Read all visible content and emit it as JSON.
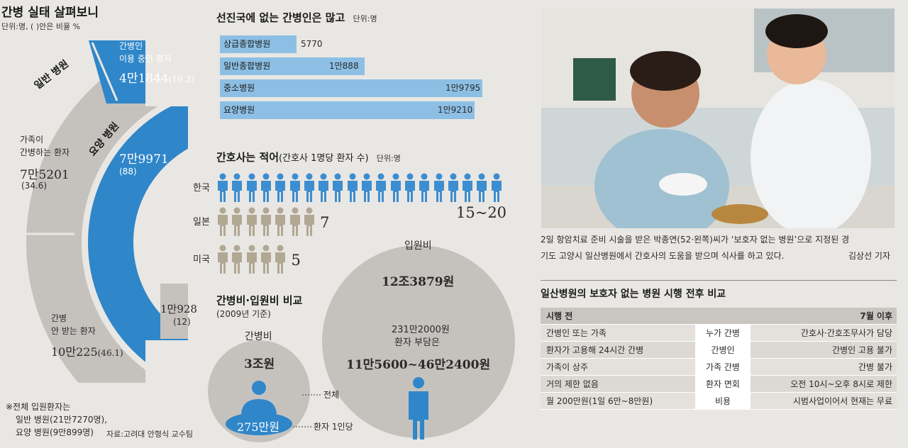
{
  "donut": {
    "title": "간병 실태 살펴보니",
    "unit": "단위:명, ( )안은 비율 %",
    "general_label": "일반 병원",
    "nursing_label": "요양 병원",
    "seg1": {
      "line1": "간병인",
      "line2": "이용 중인 환자",
      "value": "4만1844",
      "pct": "(19.3)"
    },
    "seg2": {
      "line1": "가족이",
      "line2": "간병하는 환자",
      "value": "7만5201",
      "pct": "(34.6)"
    },
    "seg3": {
      "line1": "간병",
      "line2": "안 받는 환자",
      "value": "10만225",
      "pct": "(46.1)"
    },
    "seg4": {
      "value": "7만9971",
      "pct": "(88)"
    },
    "seg5": {
      "value": "1만928",
      "pct": "(12)"
    },
    "note_line1": "※전체 입원환자는",
    "note_line2": "일반 병원(21만7270명),",
    "note_line3": "요양 병원(9만899명)",
    "source": "자료:고려대 안형식 교수팀"
  },
  "bars": {
    "title": "선진국에 없는 간병인은 많고",
    "unit": "단위:명",
    "items": [
      {
        "label": "상급종합병원",
        "value_text": "5770",
        "value": 5770
      },
      {
        "label": "일반종합병원",
        "value_text": "1만888",
        "value": 10888
      },
      {
        "label": "중소병원",
        "value_text": "1만9795",
        "value": 19795
      },
      {
        "label": "요양병원",
        "value_text": "1만9210",
        "value": 19210
      }
    ]
  },
  "nurses": {
    "title": "간호사는 적어",
    "subtitle": "(간호사 1명당 환자 수)",
    "unit": "단위:명",
    "rows": [
      {
        "country": "한국",
        "value": "15~20",
        "icons": 20,
        "color": "#3d8ed0"
      },
      {
        "country": "일본",
        "value": "7",
        "icons": 7,
        "color": "#b1a893"
      },
      {
        "country": "미국",
        "value": "5",
        "icons": 5,
        "color": "#b1a893"
      }
    ]
  },
  "costs": {
    "title": "간병비·입원비 비교",
    "subtitle": "(2009년 기준)",
    "care_label": "간병비",
    "care_total": "3조원",
    "care_per": "275만원",
    "label_total": "전체",
    "label_per": "환자 1인당",
    "hosp_label": "입원비",
    "hosp_total": "12조3879원",
    "hosp_line1": "231만2000원",
    "hosp_line2": "환자 부담은",
    "hosp_range": "11만5600~46만2400원"
  },
  "photo": {
    "caption_line1": "2일 항암치료 준비 시술을 받은 박종연(52·왼쪽)씨가 ‘보호자 없는 병원’으로 지정된 경",
    "caption_line2": "기도 고양시 일산병원에서 간호사의 도움을 받으며 식사를 하고 있다.",
    "credit": "김상선 기자"
  },
  "table": {
    "title": "일산병원의 보호자 없는 병원 시행 전후 비교",
    "header": {
      "before": "시행 전",
      "after": "7월 이후"
    },
    "rows": [
      {
        "before": "간병인 또는 가족",
        "item": "누가 간병",
        "after": "간호사·간호조무사가 담당"
      },
      {
        "before": "환자가 고용해 24시간 간병",
        "item": "간병인",
        "after": "간병인 고용 불가"
      },
      {
        "before": "가족이 상주",
        "item": "가족 간병",
        "after": "간병 불가"
      },
      {
        "before": "거의 제한 없음",
        "item": "환자 면회",
        "after": "오전 10시~오후 8시로 제한"
      },
      {
        "before": "월 200만원(1일 6만~8만원)",
        "item": "비용",
        "after": "시범사업이어서 현재는 무료"
      }
    ]
  }
}
